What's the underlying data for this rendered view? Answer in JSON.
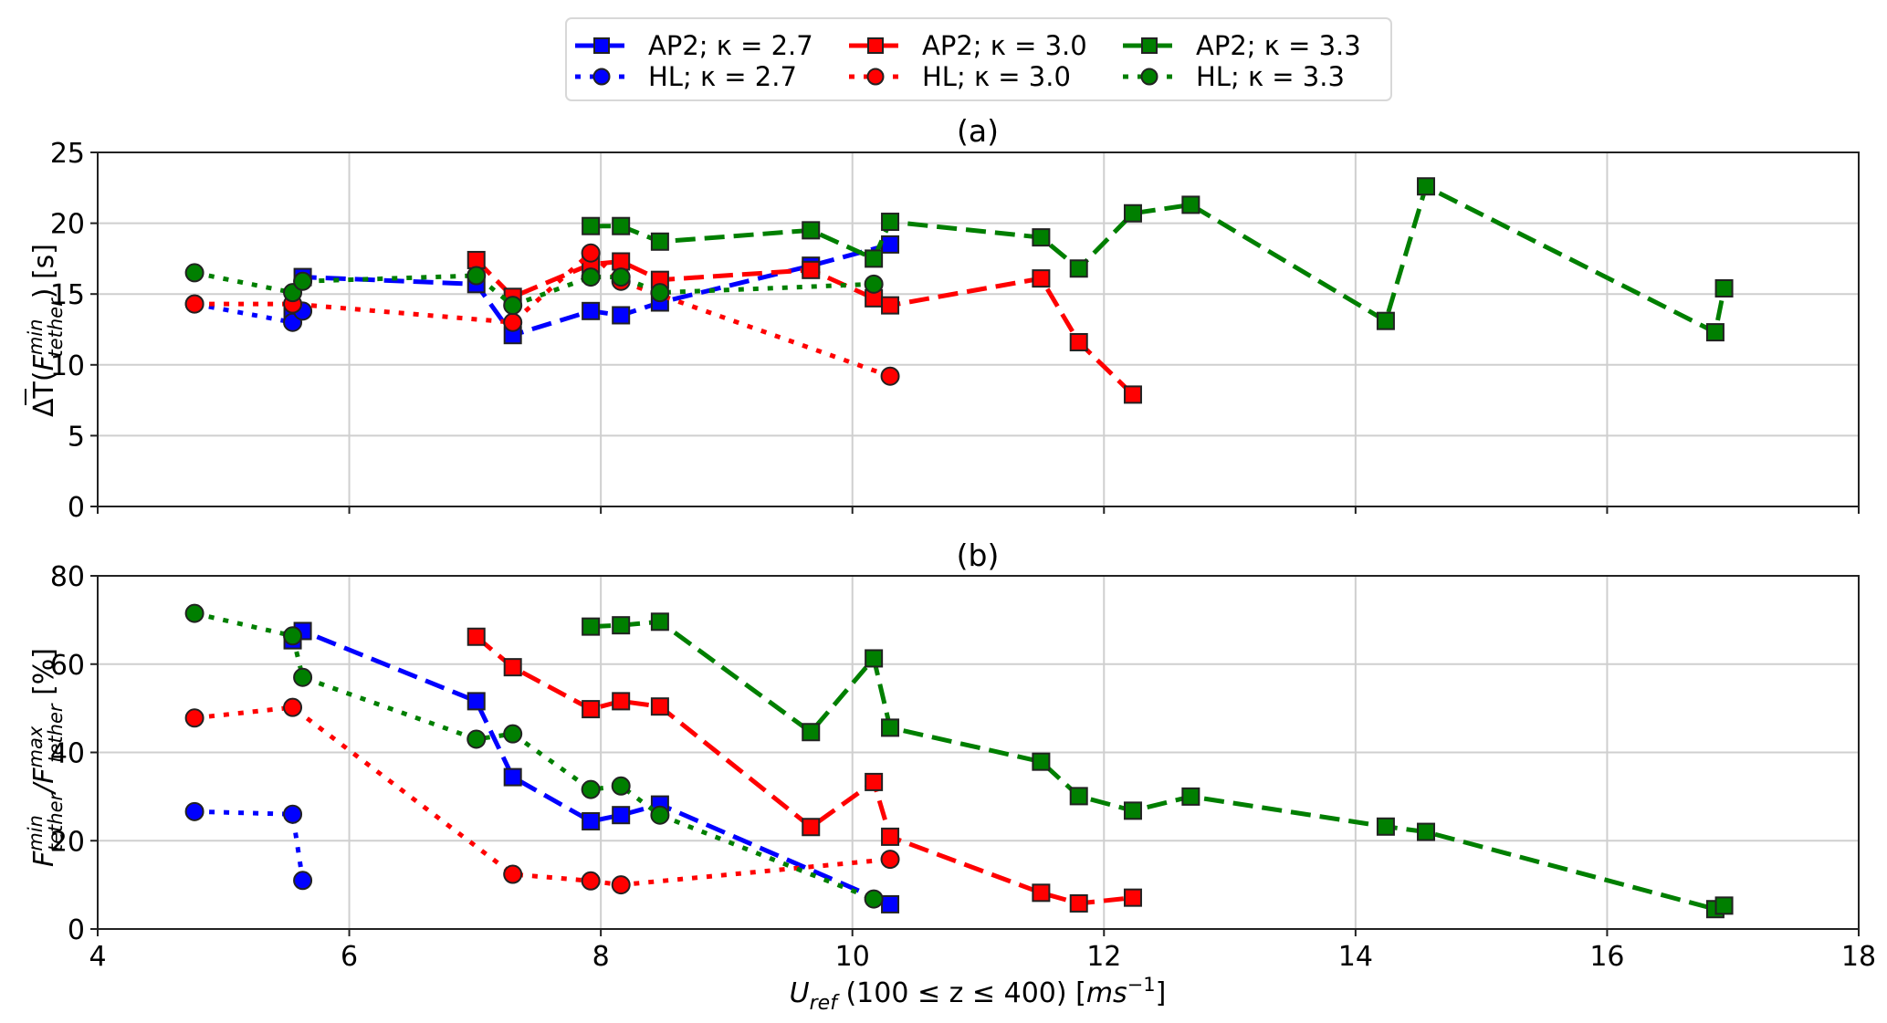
{
  "chart_data": [
    {
      "panel": "a",
      "type": "line",
      "title": "(a)",
      "xlabel": "Ū_ref (100 ≤ z ≤ 400) [ms⁻¹]",
      "ylabel": "ΔT̄(F_tether^min) [s]",
      "xlim": [
        4,
        18
      ],
      "ylim": [
        0,
        25
      ],
      "xticks": [
        4,
        6,
        8,
        10,
        12,
        14,
        16,
        18
      ],
      "yticks": [
        0,
        5,
        10,
        15,
        20,
        25
      ],
      "grid": true,
      "series": [
        {
          "name": "AP2; κ = 2.7",
          "color": "#0000ff",
          "marker": "square",
          "linestyle": "dashed",
          "x": [
            5.55,
            5.63,
            7.01,
            7.3,
            7.92,
            8.16,
            8.47,
            9.67,
            10.3
          ],
          "y": [
            13.8,
            16.2,
            15.7,
            12.1,
            13.8,
            13.5,
            14.4,
            17.0,
            18.5
          ]
        },
        {
          "name": "HL; κ = 2.7",
          "color": "#0000ff",
          "marker": "circle",
          "linestyle": "dotted",
          "x": [
            4.77,
            5.55,
            5.63
          ],
          "y": [
            14.3,
            13.0,
            13.8
          ]
        },
        {
          "name": "AP2; κ = 3.0",
          "color": "#ff0000",
          "marker": "square",
          "linestyle": "dashed",
          "x": [
            7.01,
            7.3,
            7.92,
            8.16,
            8.47,
            9.67,
            10.17,
            10.3,
            11.5,
            11.8,
            12.23
          ],
          "y": [
            17.4,
            14.8,
            17.1,
            17.3,
            16.0,
            16.7,
            14.7,
            14.2,
            16.1,
            11.6,
            7.9
          ]
        },
        {
          "name": "HL; κ = 3.0",
          "color": "#ff0000",
          "marker": "circle",
          "linestyle": "dotted",
          "x": [
            4.77,
            5.55,
            7.3,
            7.92,
            8.16,
            10.3
          ],
          "y": [
            14.3,
            14.3,
            13.0,
            17.9,
            15.9,
            9.2
          ]
        },
        {
          "name": "AP2; κ = 3.3",
          "color": "#007f00",
          "marker": "square",
          "linestyle": "dashed",
          "x": [
            7.92,
            8.16,
            8.47,
            9.67,
            10.17,
            10.3,
            11.5,
            11.8,
            12.23,
            12.69,
            14.24,
            14.56,
            16.86,
            16.93
          ],
          "y": [
            19.8,
            19.8,
            18.7,
            19.5,
            17.5,
            20.1,
            19.0,
            16.8,
            20.7,
            21.3,
            13.1,
            22.6,
            12.3,
            15.4
          ]
        },
        {
          "name": "HL; κ = 3.3",
          "color": "#007f00",
          "marker": "circle",
          "linestyle": "dotted",
          "x": [
            4.77,
            5.55,
            5.63,
            7.01,
            7.3,
            7.92,
            8.16,
            8.47,
            10.17
          ],
          "y": [
            16.5,
            15.1,
            15.9,
            16.3,
            14.2,
            16.2,
            16.2,
            15.1,
            15.7
          ]
        }
      ]
    },
    {
      "panel": "b",
      "type": "line",
      "title": "(b)",
      "xlabel": "Ū_ref (100 ≤ z ≤ 400) [ms⁻¹]",
      "ylabel": "F̄_tether^min / F̄_tether^max [%]",
      "xlim": [
        4,
        18
      ],
      "ylim": [
        0,
        80
      ],
      "xticks": [
        4,
        6,
        8,
        10,
        12,
        14,
        16,
        18
      ],
      "yticks": [
        0,
        20,
        40,
        60,
        80
      ],
      "grid": true,
      "series": [
        {
          "name": "AP2; κ = 2.7",
          "color": "#0000ff",
          "marker": "square",
          "linestyle": "dashed",
          "x": [
            5.55,
            5.63,
            7.01,
            7.3,
            7.92,
            8.16,
            8.47,
            10.3
          ],
          "y": [
            65.4,
            67.5,
            51.6,
            34.4,
            24.4,
            25.8,
            28.2,
            5.6
          ]
        },
        {
          "name": "HL; κ = 2.7",
          "color": "#0000ff",
          "marker": "circle",
          "linestyle": "dotted",
          "x": [
            4.77,
            5.55,
            5.63
          ],
          "y": [
            26.6,
            26.0,
            11.0
          ]
        },
        {
          "name": "AP2; κ = 3.0",
          "color": "#ff0000",
          "marker": "square",
          "linestyle": "dashed",
          "x": [
            7.01,
            7.3,
            7.92,
            8.16,
            8.47,
            9.67,
            10.17,
            10.3,
            11.5,
            11.8,
            12.23
          ],
          "y": [
            66.2,
            59.3,
            49.8,
            51.6,
            50.4,
            23.1,
            33.3,
            20.9,
            8.2,
            5.8,
            7.1
          ]
        },
        {
          "name": "HL; κ = 3.0",
          "color": "#ff0000",
          "marker": "circle",
          "linestyle": "dotted",
          "x": [
            4.77,
            5.55,
            7.3,
            7.92,
            8.16,
            10.3
          ],
          "y": [
            47.8,
            50.2,
            12.4,
            10.9,
            10.0,
            15.8
          ]
        },
        {
          "name": "AP2; κ = 3.3",
          "color": "#007f00",
          "marker": "square",
          "linestyle": "dashed",
          "x": [
            7.92,
            8.16,
            8.47,
            9.67,
            10.17,
            10.3,
            11.5,
            11.8,
            12.23,
            12.69,
            14.24,
            14.56,
            16.86,
            16.93
          ],
          "y": [
            68.5,
            68.8,
            69.6,
            44.6,
            61.3,
            45.6,
            37.9,
            30.1,
            26.8,
            30.0,
            23.2,
            22.0,
            4.5,
            5.3
          ]
        },
        {
          "name": "HL; κ = 3.3",
          "color": "#007f00",
          "marker": "circle",
          "linestyle": "dotted",
          "x": [
            4.77,
            5.55,
            5.63,
            7.01,
            7.3,
            7.92,
            8.16,
            8.47,
            10.17
          ],
          "y": [
            71.5,
            66.4,
            57.0,
            43.0,
            44.2,
            31.6,
            32.4,
            25.8,
            6.8
          ]
        }
      ]
    }
  ],
  "legend": {
    "placement": "top-center",
    "columns": 3,
    "entries": [
      {
        "label": "AP2; κ = 2.7",
        "color": "#0000ff",
        "marker": "square",
        "linestyle": "dashed"
      },
      {
        "label": "HL; κ = 2.7",
        "color": "#0000ff",
        "marker": "circle",
        "linestyle": "dotted"
      },
      {
        "label": "AP2; κ = 3.0",
        "color": "#ff0000",
        "marker": "square",
        "linestyle": "dashed"
      },
      {
        "label": "HL; κ = 3.0",
        "color": "#ff0000",
        "marker": "circle",
        "linestyle": "dotted"
      },
      {
        "label": "AP2; κ = 3.3",
        "color": "#007f00",
        "marker": "square",
        "linestyle": "dashed"
      },
      {
        "label": "HL; κ = 3.3",
        "color": "#007f00",
        "marker": "circle",
        "linestyle": "dotted"
      }
    ]
  },
  "labels": {
    "title_a": "(a)",
    "title_b": "(b)",
    "xlabel_main": "U",
    "xlabel_sub": "ref",
    "xlabel_rest": " (100 ≤ z ≤ 400) [",
    "xlabel_unit": "ms",
    "xlabel_exp": "−1",
    "xlabel_close": "]",
    "ylabel_a_pre": "ΔT(",
    "ylabel_a_F": "F",
    "ylabel_a_sup": "min",
    "ylabel_a_sub": "tether",
    "ylabel_a_post": ") [s]",
    "ylabel_b_F1": "F",
    "ylabel_b_sup1": "min",
    "ylabel_b_sub1": "tether",
    "ylabel_b_slash": "/",
    "ylabel_b_F2": "F",
    "ylabel_b_sup2": "max",
    "ylabel_b_sub2": "tether",
    "ylabel_b_post": " [%]"
  }
}
